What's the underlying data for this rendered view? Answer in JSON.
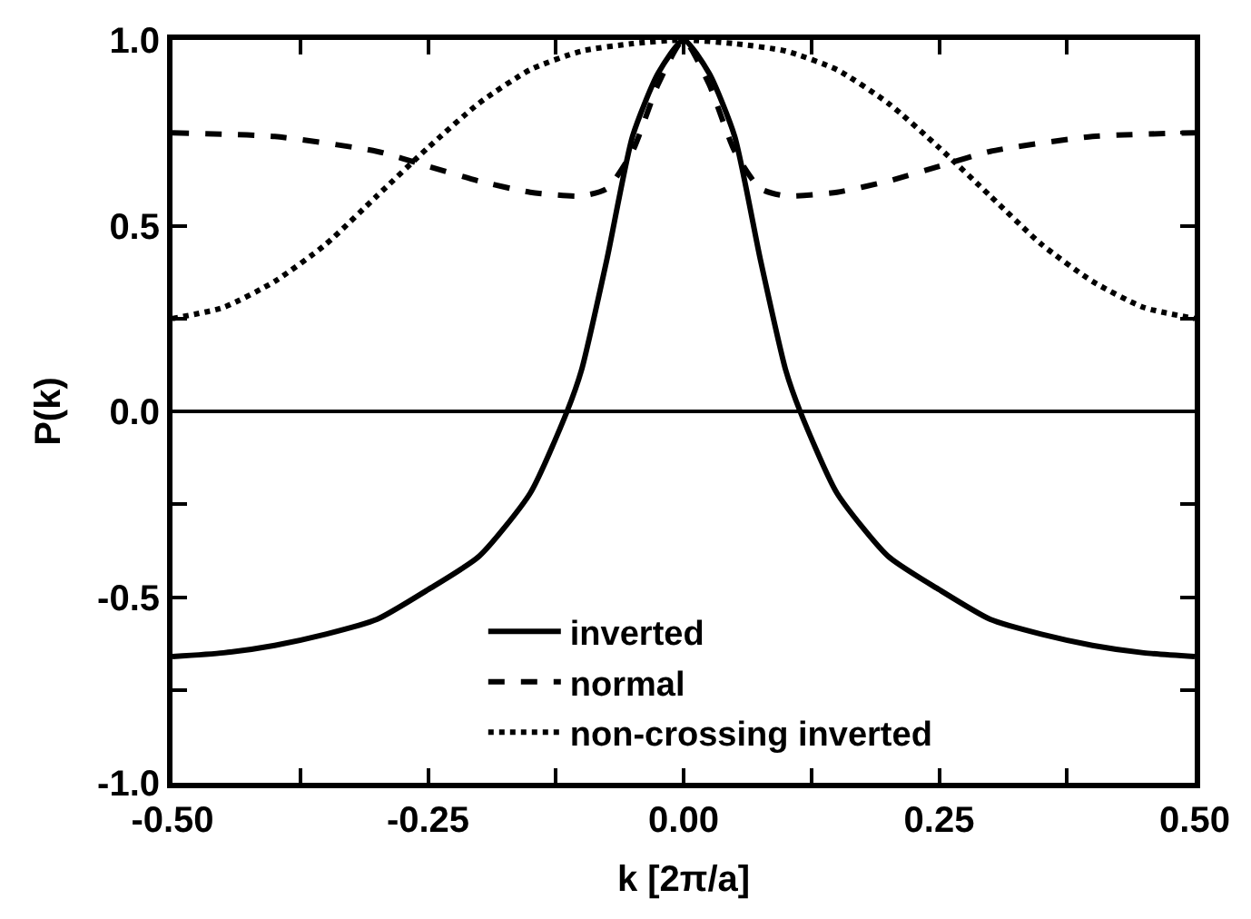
{
  "chart_data": {
    "type": "line",
    "xlabel": "k [2π/a]",
    "ylabel": "P(k)",
    "xlim": [
      -0.5,
      0.5
    ],
    "ylim": [
      -1.0,
      1.0
    ],
    "xticks": [
      {
        "value": -0.5,
        "label": "-0.50"
      },
      {
        "value": -0.375,
        "label": null
      },
      {
        "value": -0.25,
        "label": "-0.25"
      },
      {
        "value": -0.125,
        "label": null
      },
      {
        "value": 0,
        "label": "0.00"
      },
      {
        "value": 0.125,
        "label": null
      },
      {
        "value": 0.25,
        "label": "0.25"
      },
      {
        "value": 0.375,
        "label": null
      },
      {
        "value": 0.5,
        "label": "0.50"
      }
    ],
    "yticks": [
      {
        "value": -1,
        "label": "-1.0"
      },
      {
        "value": -0.75,
        "label": null
      },
      {
        "value": -0.5,
        "label": "-0.5"
      },
      {
        "value": -0.25,
        "label": null
      },
      {
        "value": 0,
        "label": "0.0"
      },
      {
        "value": 0.25,
        "label": null
      },
      {
        "value": 0.5,
        "label": "0.5"
      },
      {
        "value": 0.75,
        "label": null
      },
      {
        "value": 1,
        "label": "1.0"
      }
    ],
    "legend": "bottom",
    "ref_lines": [
      {
        "axis": "y",
        "value": 0,
        "label": null,
        "color": "#000000",
        "line_style": "solid"
      }
    ],
    "series": [
      {
        "name": "inverted",
        "color": "#000000",
        "line_style": "solid",
        "x": [
          -0.5,
          -0.45,
          -0.4,
          -0.35,
          -0.3,
          -0.25,
          -0.2,
          -0.15,
          -0.114,
          -0.1,
          -0.075,
          -0.05,
          -0.025,
          0,
          0.025,
          0.05,
          0.075,
          0.1,
          0.114,
          0.15,
          0.2,
          0.25,
          0.3,
          0.35,
          0.4,
          0.45,
          0.5
        ],
        "values": [
          -0.66,
          -0.65,
          -0.63,
          -0.6,
          -0.56,
          -0.48,
          -0.39,
          -0.22,
          0,
          0.11,
          0.41,
          0.74,
          0.91,
          1.0,
          0.91,
          0.74,
          0.41,
          0.11,
          0,
          -0.22,
          -0.39,
          -0.48,
          -0.56,
          -0.6,
          -0.63,
          -0.65,
          -0.66
        ]
      },
      {
        "name": "normal",
        "color": "#000000",
        "line_style": "dashed",
        "x": [
          -0.5,
          -0.4,
          -0.3,
          -0.25,
          -0.2,
          -0.15,
          -0.1,
          -0.075,
          -0.05,
          -0.025,
          0,
          0.025,
          0.05,
          0.075,
          0.1,
          0.15,
          0.2,
          0.25,
          0.3,
          0.4,
          0.5
        ],
        "values": [
          0.75,
          0.74,
          0.7,
          0.66,
          0.62,
          0.59,
          0.58,
          0.6,
          0.7,
          0.88,
          1.0,
          0.88,
          0.7,
          0.6,
          0.58,
          0.59,
          0.62,
          0.66,
          0.7,
          0.74,
          0.75
        ]
      },
      {
        "name": "non-crossing inverted",
        "color": "#000000",
        "line_style": "dotted",
        "x": [
          -0.5,
          -0.45,
          -0.4,
          -0.35,
          -0.3,
          -0.25,
          -0.2,
          -0.15,
          -0.1,
          -0.05,
          0,
          0.05,
          0.1,
          0.15,
          0.2,
          0.25,
          0.3,
          0.35,
          0.4,
          0.45,
          0.5
        ],
        "values": [
          0.25,
          0.28,
          0.35,
          0.45,
          0.58,
          0.71,
          0.83,
          0.92,
          0.97,
          0.99,
          1.0,
          0.99,
          0.97,
          0.92,
          0.83,
          0.71,
          0.58,
          0.45,
          0.35,
          0.28,
          0.25
        ]
      }
    ]
  }
}
